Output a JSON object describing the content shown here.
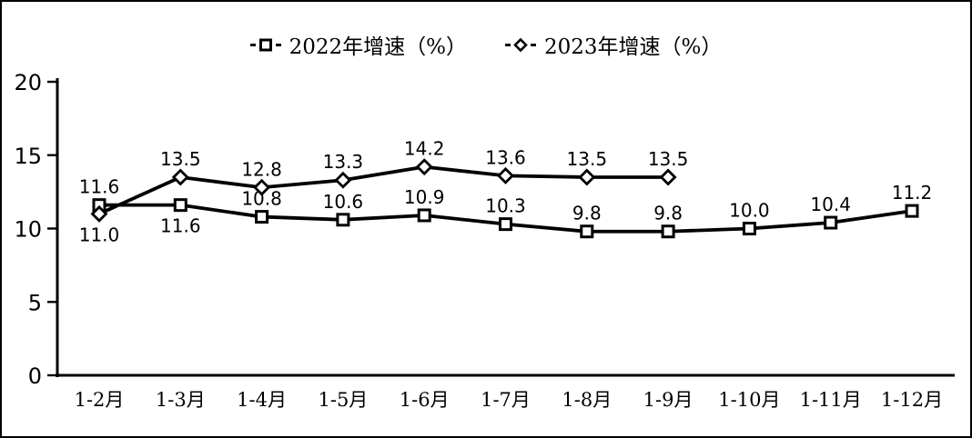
{
  "chart_data": {
    "type": "line",
    "title": "",
    "xlabel": "",
    "ylabel": "",
    "ylim": [
      0,
      20
    ],
    "yticks": [
      0,
      5,
      10,
      15,
      20
    ],
    "grid": false,
    "legend_position": "top-center",
    "background_color": "#ffffff",
    "line_color": "#000000",
    "categories": [
      "1-2月",
      "1-3月",
      "1-4月",
      "1-5月",
      "1-6月",
      "1-7月",
      "1-8月",
      "1-9月",
      "1-10月",
      "1-11月",
      "1-12月"
    ],
    "series": [
      {
        "name": "2022年增速（%）",
        "marker": "square",
        "color": "#000000",
        "values": [
          11.6,
          11.6,
          10.8,
          10.6,
          10.9,
          10.3,
          9.8,
          9.8,
          10.0,
          10.4,
          11.2
        ],
        "labels": [
          "11.6",
          "11.6",
          "10.8",
          "10.6",
          "10.9",
          "10.3",
          "9.8",
          "9.8",
          "10.0",
          "10.4",
          "11.2"
        ],
        "label_side": [
          "above",
          "below",
          "above",
          "above",
          "above",
          "above",
          "above",
          "above",
          "above",
          "above",
          "above"
        ]
      },
      {
        "name": "2023年增速（%）",
        "marker": "diamond",
        "color": "#000000",
        "values": [
          11.0,
          13.5,
          12.8,
          13.3,
          14.2,
          13.6,
          13.5,
          13.5
        ],
        "labels": [
          "11.0",
          "13.5",
          "12.8",
          "13.3",
          "14.2",
          "13.6",
          "13.5",
          "13.5"
        ],
        "label_side": [
          "below",
          "above",
          "above",
          "above",
          "above",
          "above",
          "above",
          "above"
        ]
      }
    ]
  }
}
